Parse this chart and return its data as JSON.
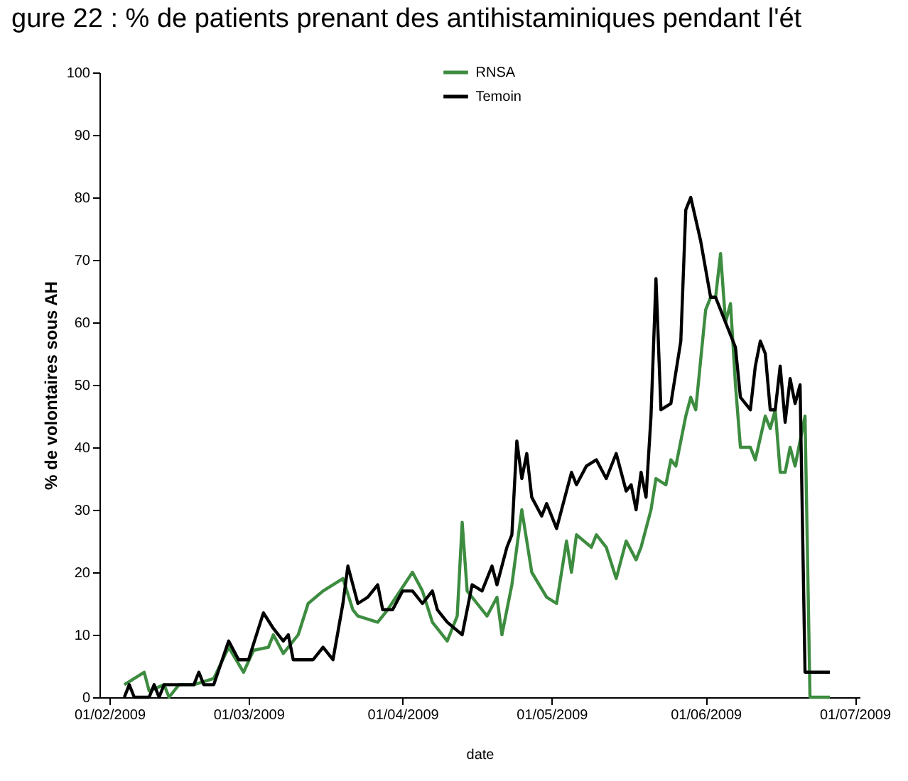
{
  "chart_data": {
    "type": "line",
    "title": "gure 22 : % de patients prenant des antihistaminiques pendant l'ét",
    "xlabel": "date",
    "ylabel": "% de volontaires sous AH",
    "xlim": [
      "2009-01-30",
      "2009-07-02"
    ],
    "xticks": [
      {
        "value": "2009-02-01",
        "label": "01/02/2009"
      },
      {
        "value": "2009-03-01",
        "label": "01/03/2009"
      },
      {
        "value": "2009-04-01",
        "label": "01/04/2009"
      },
      {
        "value": "2009-05-01",
        "label": "01/05/2009"
      },
      {
        "value": "2009-06-01",
        "label": "01/06/2009"
      },
      {
        "value": "2009-07-01",
        "label": "01/07/2009"
      }
    ],
    "ylim": [
      0,
      100
    ],
    "yticks": [
      0,
      10,
      20,
      30,
      40,
      50,
      60,
      70,
      80,
      90,
      100
    ],
    "legend": "top",
    "grid": false,
    "series": [
      {
        "name": "RNSA",
        "color": "#3d8c40",
        "x": [
          "2009-02-04",
          "2009-02-08",
          "2009-02-09",
          "2009-02-12",
          "2009-02-13",
          "2009-02-15",
          "2009-02-18",
          "2009-02-22",
          "2009-02-25",
          "2009-02-28",
          "2009-03-02",
          "2009-03-05",
          "2009-03-06",
          "2009-03-08",
          "2009-03-11",
          "2009-03-13",
          "2009-03-16",
          "2009-03-20",
          "2009-03-22",
          "2009-03-23",
          "2009-03-27",
          "2009-03-29",
          "2009-04-03",
          "2009-04-05",
          "2009-04-07",
          "2009-04-10",
          "2009-04-12",
          "2009-04-13",
          "2009-04-14",
          "2009-04-16",
          "2009-04-18",
          "2009-04-20",
          "2009-04-21",
          "2009-04-23",
          "2009-04-25",
          "2009-04-27",
          "2009-04-30",
          "2009-05-02",
          "2009-05-04",
          "2009-05-05",
          "2009-05-06",
          "2009-05-09",
          "2009-05-10",
          "2009-05-12",
          "2009-05-14",
          "2009-05-16",
          "2009-05-18",
          "2009-05-19",
          "2009-05-21",
          "2009-05-22",
          "2009-05-24",
          "2009-05-25",
          "2009-05-26",
          "2009-05-28",
          "2009-05-29",
          "2009-05-30",
          "2009-06-01",
          "2009-06-02",
          "2009-06-03",
          "2009-06-04",
          "2009-06-05",
          "2009-06-06",
          "2009-06-07",
          "2009-06-08",
          "2009-06-10",
          "2009-06-11",
          "2009-06-13",
          "2009-06-14",
          "2009-06-15",
          "2009-06-16",
          "2009-06-17",
          "2009-06-18",
          "2009-06-19",
          "2009-06-21",
          "2009-06-22",
          "2009-06-26"
        ],
        "values": [
          2,
          4,
          1,
          2,
          0,
          2,
          2,
          3,
          8,
          4,
          7.5,
          8,
          10,
          7,
          10,
          15,
          17,
          19,
          14,
          13,
          12,
          14,
          20,
          17,
          12,
          9,
          13,
          28,
          17,
          15,
          13,
          16,
          10,
          18,
          30,
          20,
          16,
          15,
          25,
          20,
          26,
          24,
          26,
          24,
          19,
          25,
          22,
          24,
          30,
          35,
          34,
          38,
          37,
          45,
          48,
          46,
          62,
          64,
          64,
          71,
          60,
          63,
          50,
          40,
          40,
          38,
          45,
          43,
          46,
          36,
          36,
          40,
          37,
          45,
          0,
          0
        ]
      },
      {
        "name": "Temoin",
        "color": "#000000",
        "x": [
          "2009-02-04",
          "2009-02-05",
          "2009-02-06",
          "2009-02-09",
          "2009-02-10",
          "2009-02-11",
          "2009-02-12",
          "2009-02-14",
          "2009-02-18",
          "2009-02-19",
          "2009-02-20",
          "2009-02-22",
          "2009-02-25",
          "2009-02-27",
          "2009-03-01",
          "2009-03-03",
          "2009-03-04",
          "2009-03-06",
          "2009-03-08",
          "2009-03-09",
          "2009-03-10",
          "2009-03-14",
          "2009-03-16",
          "2009-03-18",
          "2009-03-20",
          "2009-03-21",
          "2009-03-23",
          "2009-03-25",
          "2009-03-27",
          "2009-03-28",
          "2009-03-30",
          "2009-04-01",
          "2009-04-03",
          "2009-04-05",
          "2009-04-07",
          "2009-04-08",
          "2009-04-10",
          "2009-04-13",
          "2009-04-15",
          "2009-04-17",
          "2009-04-19",
          "2009-04-20",
          "2009-04-22",
          "2009-04-23",
          "2009-04-24",
          "2009-04-25",
          "2009-04-26",
          "2009-04-27",
          "2009-04-29",
          "2009-04-30",
          "2009-05-02",
          "2009-05-03",
          "2009-05-05",
          "2009-05-06",
          "2009-05-08",
          "2009-05-10",
          "2009-05-12",
          "2009-05-14",
          "2009-05-16",
          "2009-05-17",
          "2009-05-18",
          "2009-05-19",
          "2009-05-20",
          "2009-05-21",
          "2009-05-22",
          "2009-05-23",
          "2009-05-25",
          "2009-05-27",
          "2009-05-28",
          "2009-05-29",
          "2009-05-31",
          "2009-06-02",
          "2009-06-03",
          "2009-06-05",
          "2009-06-07",
          "2009-06-08",
          "2009-06-10",
          "2009-06-11",
          "2009-06-12",
          "2009-06-13",
          "2009-06-14",
          "2009-06-15",
          "2009-06-16",
          "2009-06-17",
          "2009-06-18",
          "2009-06-19",
          "2009-06-20",
          "2009-06-21",
          "2009-06-26"
        ],
        "values": [
          0,
          2,
          0,
          0,
          2,
          0,
          2,
          2,
          2,
          4,
          2,
          2,
          9,
          6,
          6,
          11,
          13.5,
          11,
          9,
          10,
          6,
          6,
          8,
          6,
          15,
          21,
          15,
          16,
          18,
          14,
          14,
          17,
          17,
          15,
          17,
          14,
          12,
          10,
          18,
          17,
          21,
          18,
          24,
          26,
          41,
          35,
          39,
          32,
          29,
          31,
          27,
          30,
          36,
          34,
          37,
          38,
          35,
          39,
          33,
          34,
          30,
          36,
          32,
          45,
          67,
          46,
          47,
          57,
          78,
          80,
          73,
          64,
          64,
          60,
          56,
          48,
          46,
          53,
          57,
          55,
          46,
          46,
          53,
          44,
          51,
          47,
          50,
          4,
          4
        ]
      }
    ]
  }
}
